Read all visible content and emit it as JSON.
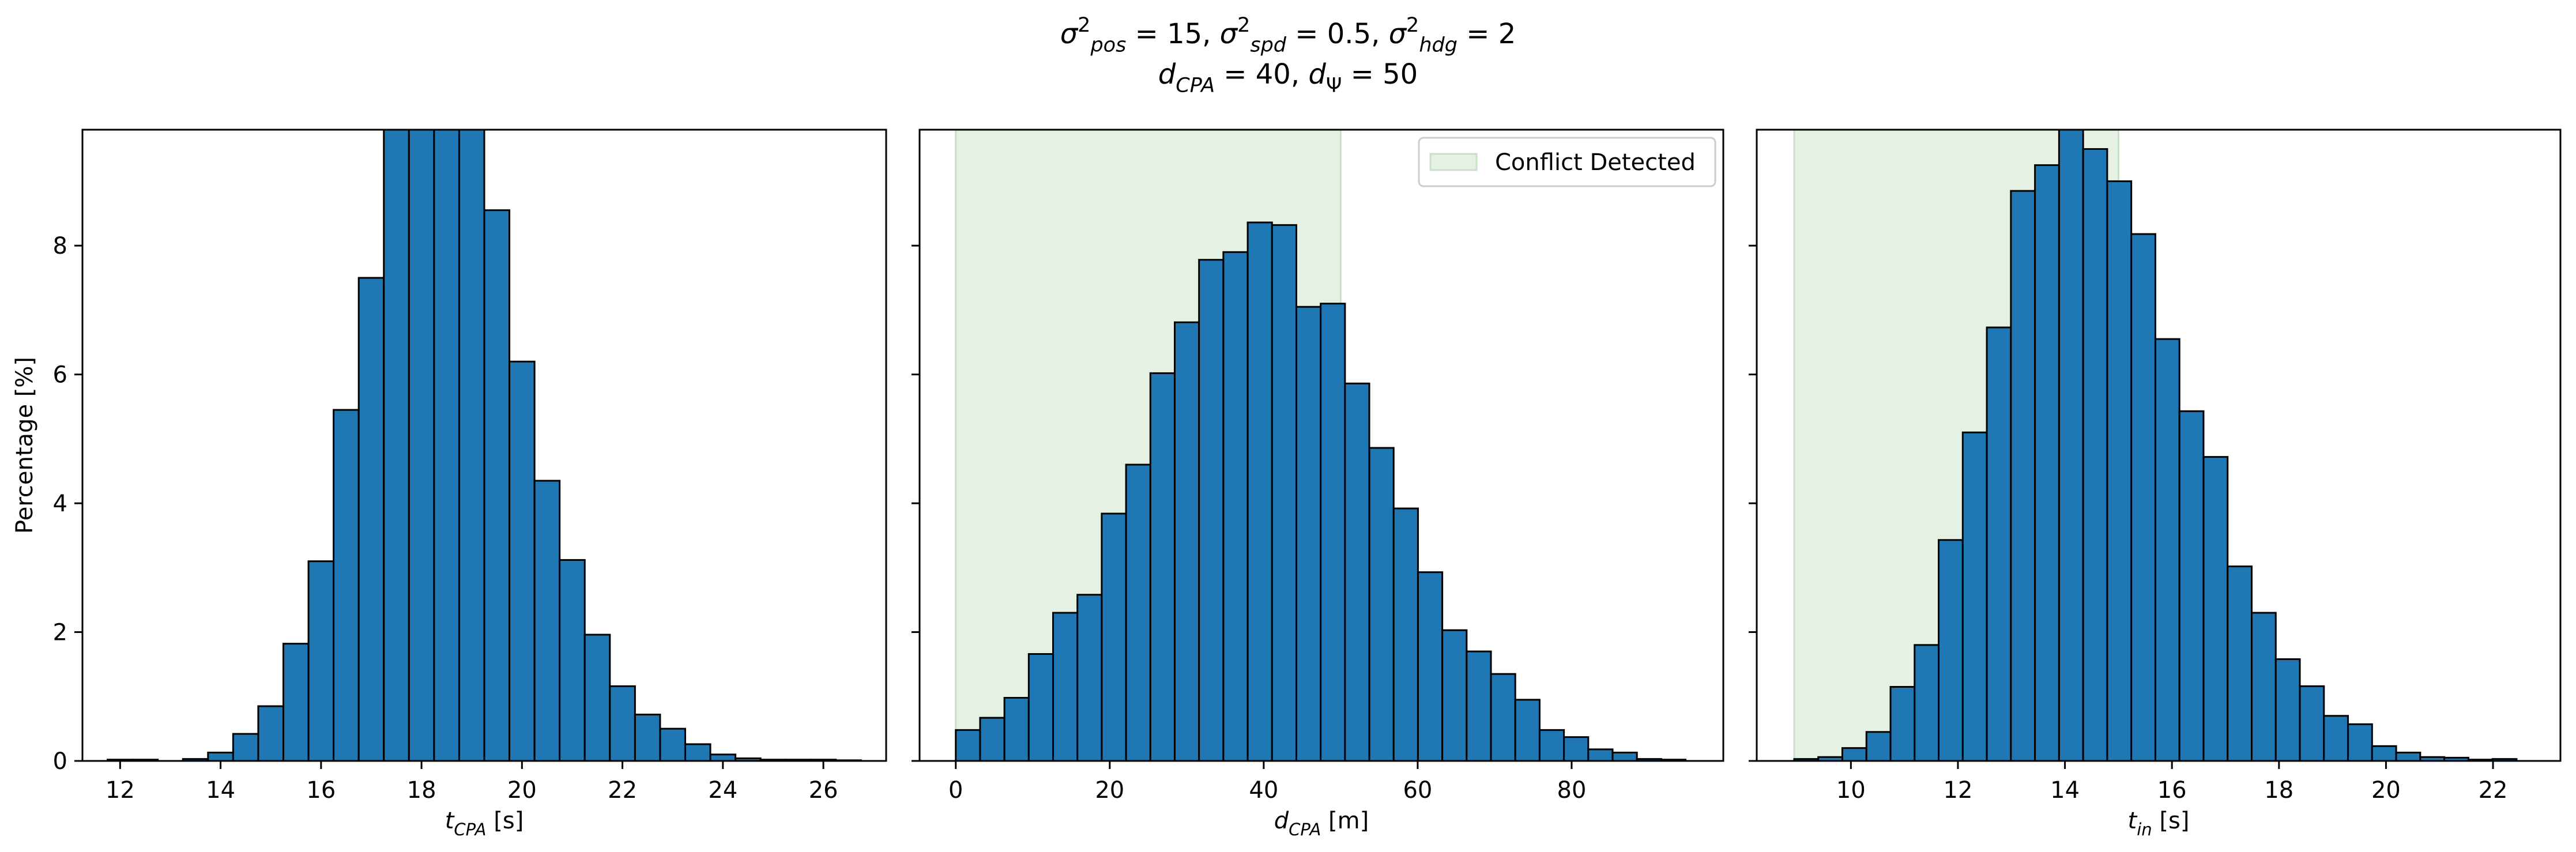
{
  "figure": {
    "title_line1": "σ²pos = 15, σ²spd = 0.5, σ²hdg = 2",
    "title_line2": "dCPA = 40, dΨ = 50",
    "title_line1_parts": [
      {
        "t": "σ",
        "s": "main",
        "it": true
      },
      {
        "t": "2",
        "s": "sup"
      },
      {
        "t": "pos",
        "s": "sub",
        "it": true
      },
      {
        "t": " = 15, ",
        "s": "main"
      },
      {
        "t": "σ",
        "s": "main",
        "it": true
      },
      {
        "t": "2",
        "s": "sup"
      },
      {
        "t": "spd",
        "s": "sub",
        "it": true
      },
      {
        "t": " = 0.5, ",
        "s": "main"
      },
      {
        "t": "σ",
        "s": "main",
        "it": true
      },
      {
        "t": "2",
        "s": "sup"
      },
      {
        "t": "hdg",
        "s": "sub",
        "it": true
      },
      {
        "t": " = 2",
        "s": "main"
      }
    ],
    "title_line2_parts": [
      {
        "t": "d",
        "s": "main",
        "it": true
      },
      {
        "t": "CPA",
        "s": "sub",
        "it": true
      },
      {
        "t": " = 40, ",
        "s": "main"
      },
      {
        "t": "d",
        "s": "main",
        "it": true
      },
      {
        "t": "Ψ",
        "s": "sub"
      },
      {
        "t": " = 50",
        "s": "main"
      }
    ]
  },
  "colors": {
    "bar_fill": "#1f77b4",
    "bar_edge": "#000000",
    "shade": "#e4f1e3",
    "shade_edge": "#c8e1c6",
    "axis": "#000000",
    "background": "#ffffff"
  },
  "chart_data": [
    {
      "type": "bar",
      "subtype": "histogram",
      "title": "",
      "xlabel": "tCPA [s]",
      "xlabel_parts": [
        {
          "t": "t",
          "s": "main",
          "it": true
        },
        {
          "t": "CPA",
          "s": "sub",
          "it": true
        },
        {
          "t": " [s]",
          "s": "main"
        }
      ],
      "ylabel": "Percentage [%]",
      "xlim": [
        11.25,
        27.25
      ],
      "ylim": [
        0,
        9.8
      ],
      "xticks": [
        12,
        14,
        16,
        18,
        20,
        22,
        24,
        26
      ],
      "yticks": [
        0,
        2,
        4,
        6,
        8
      ],
      "bin_edges": [
        11.75,
        12.25,
        12.75,
        13.25,
        13.75,
        14.25,
        14.75,
        15.25,
        15.75,
        16.25,
        16.75,
        17.25,
        17.75,
        18.25,
        18.75,
        19.25,
        19.75,
        20.25,
        20.75,
        21.25,
        21.75,
        22.25,
        22.75,
        23.25,
        23.75,
        24.25,
        24.75,
        25.25,
        25.75,
        26.25,
        26.75
      ],
      "values": [
        0.02,
        0.02,
        0.0,
        0.03,
        0.13,
        0.42,
        0.85,
        1.82,
        3.1,
        5.45,
        7.5,
        9.8,
        9.8,
        9.8,
        9.8,
        8.55,
        6.2,
        4.35,
        3.12,
        1.96,
        1.16,
        0.72,
        0.5,
        0.26,
        0.1,
        0.04,
        0.02,
        0.02,
        0.02,
        0.01
      ],
      "shaded_region": null,
      "legend": []
    },
    {
      "type": "bar",
      "subtype": "histogram",
      "title": "",
      "xlabel": "dCPA [m]",
      "xlabel_parts": [
        {
          "t": "d",
          "s": "main",
          "it": true
        },
        {
          "t": "CPA",
          "s": "sub",
          "it": true
        },
        {
          "t": " [m]",
          "s": "main"
        }
      ],
      "ylabel": "",
      "xlim": [
        -4.7,
        99.7
      ],
      "ylim": [
        0,
        9.8
      ],
      "xticks": [
        0,
        20,
        40,
        60,
        80
      ],
      "yticks": [
        0,
        2,
        4,
        6,
        8
      ],
      "bin_edges": [
        0.0,
        3.16,
        6.32,
        9.48,
        12.64,
        15.8,
        18.96,
        22.12,
        25.28,
        28.44,
        31.6,
        34.76,
        37.92,
        41.08,
        44.24,
        47.4,
        50.56,
        53.72,
        56.88,
        60.04,
        63.2,
        66.36,
        69.52,
        72.68,
        75.84,
        79.0,
        82.16,
        85.32,
        88.48,
        91.64,
        94.8
      ],
      "values": [
        0.48,
        0.67,
        0.98,
        1.66,
        2.3,
        2.58,
        3.84,
        4.6,
        6.02,
        6.81,
        7.78,
        7.9,
        8.36,
        8.32,
        7.05,
        7.1,
        5.86,
        4.86,
        3.92,
        2.93,
        2.03,
        1.7,
        1.35,
        0.95,
        0.48,
        0.37,
        0.18,
        0.13,
        0.03,
        0.02
      ],
      "shaded_region": {
        "from": 0,
        "to": 50,
        "label": "Conflict Detected"
      },
      "legend": [
        {
          "label": "Conflict Detected",
          "swatch": "shade"
        }
      ],
      "legend_position": "upper-right"
    },
    {
      "type": "bar",
      "subtype": "histogram",
      "title": "",
      "xlabel": "tin [s]",
      "xlabel_parts": [
        {
          "t": "t",
          "s": "main",
          "it": true
        },
        {
          "t": "in",
          "s": "sub",
          "it": true
        },
        {
          "t": " [s]",
          "s": "main"
        }
      ],
      "ylabel": "",
      "xlim": [
        8.24,
        23.26
      ],
      "ylim": [
        0,
        9.8
      ],
      "xticks": [
        10,
        12,
        14,
        16,
        18,
        20,
        22
      ],
      "yticks": [
        0,
        2,
        4,
        6,
        8
      ],
      "bin_edges": [
        8.94,
        9.39,
        9.84,
        10.29,
        10.74,
        11.19,
        11.64,
        12.09,
        12.54,
        12.99,
        13.44,
        13.89,
        14.34,
        14.79,
        15.24,
        15.69,
        16.14,
        16.59,
        17.04,
        17.49,
        17.94,
        18.39,
        18.84,
        19.29,
        19.74,
        20.19,
        20.64,
        21.09,
        21.54,
        21.99,
        22.44
      ],
      "values": [
        0.03,
        0.06,
        0.2,
        0.45,
        1.15,
        1.8,
        3.43,
        5.1,
        6.73,
        8.85,
        9.25,
        9.8,
        9.5,
        9.0,
        8.18,
        6.55,
        5.43,
        4.72,
        3.02,
        2.3,
        1.58,
        1.16,
        0.7,
        0.57,
        0.23,
        0.13,
        0.06,
        0.05,
        0.02,
        0.03
      ],
      "shaded_region": {
        "from": 8.94,
        "to": 15.0,
        "label": ""
      },
      "legend": []
    }
  ]
}
